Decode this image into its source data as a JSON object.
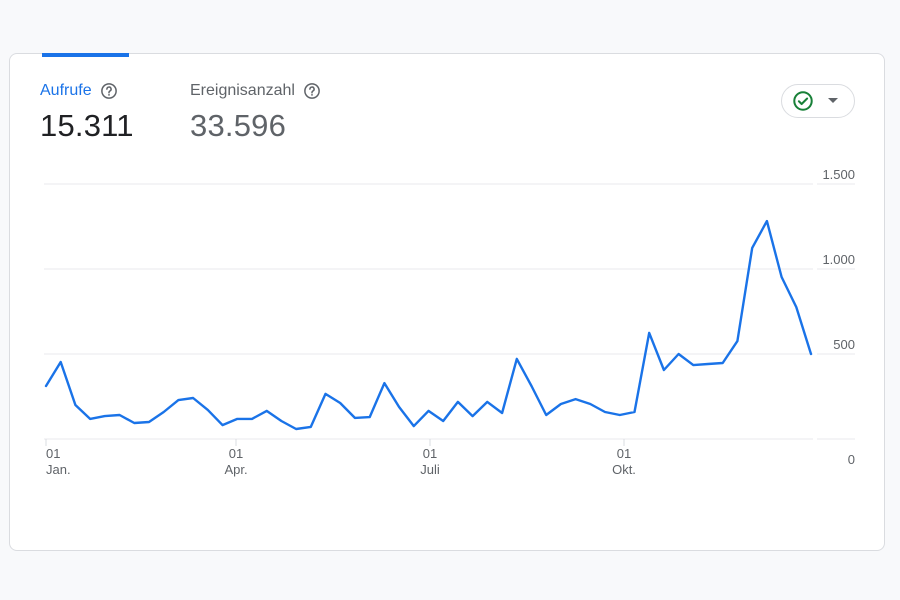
{
  "metrics": {
    "active": {
      "label": "Aufrufe",
      "value": "15.311",
      "help_icon": "question-circle-icon"
    },
    "inactive": {
      "label": "Ereignisanzahl",
      "value": "33.596",
      "help_icon": "question-circle-icon"
    }
  },
  "status_pill": {
    "icon": "check-circle-icon",
    "dropdown_icon": "caret-down-icon",
    "status_color": "#188038"
  },
  "colors": {
    "accent": "#1a73e8",
    "line": "#1a73e8",
    "grid": "#e8eaed"
  },
  "chart_data": {
    "type": "line",
    "title": "",
    "xlabel": "",
    "ylabel": "Aufrufe",
    "ylim": [
      0,
      1500
    ],
    "y_ticks": [
      "0",
      "500",
      "1.000",
      "1.500"
    ],
    "y_tick_values": [
      0,
      500,
      1000,
      1500
    ],
    "x_ticks": [
      {
        "day": "01",
        "month": "Jan."
      },
      {
        "day": "01",
        "month": "Apr."
      },
      {
        "day": "01",
        "month": "Juli"
      },
      {
        "day": "01",
        "month": "Okt."
      }
    ],
    "grid": true,
    "legend": null,
    "series": [
      {
        "name": "Aufrufe",
        "values": [
          312,
          453,
          200,
          118,
          135,
          141,
          94,
          100,
          159,
          229,
          241,
          171,
          82,
          118,
          118,
          165,
          106,
          59,
          71,
          265,
          212,
          124,
          129,
          329,
          188,
          76,
          165,
          106,
          218,
          135,
          218,
          153,
          471,
          312,
          141,
          206,
          235,
          206,
          159,
          141,
          159,
          624,
          406,
          500,
          435,
          441,
          447,
          576,
          1124,
          1282,
          953,
          776,
          500
        ]
      }
    ]
  }
}
